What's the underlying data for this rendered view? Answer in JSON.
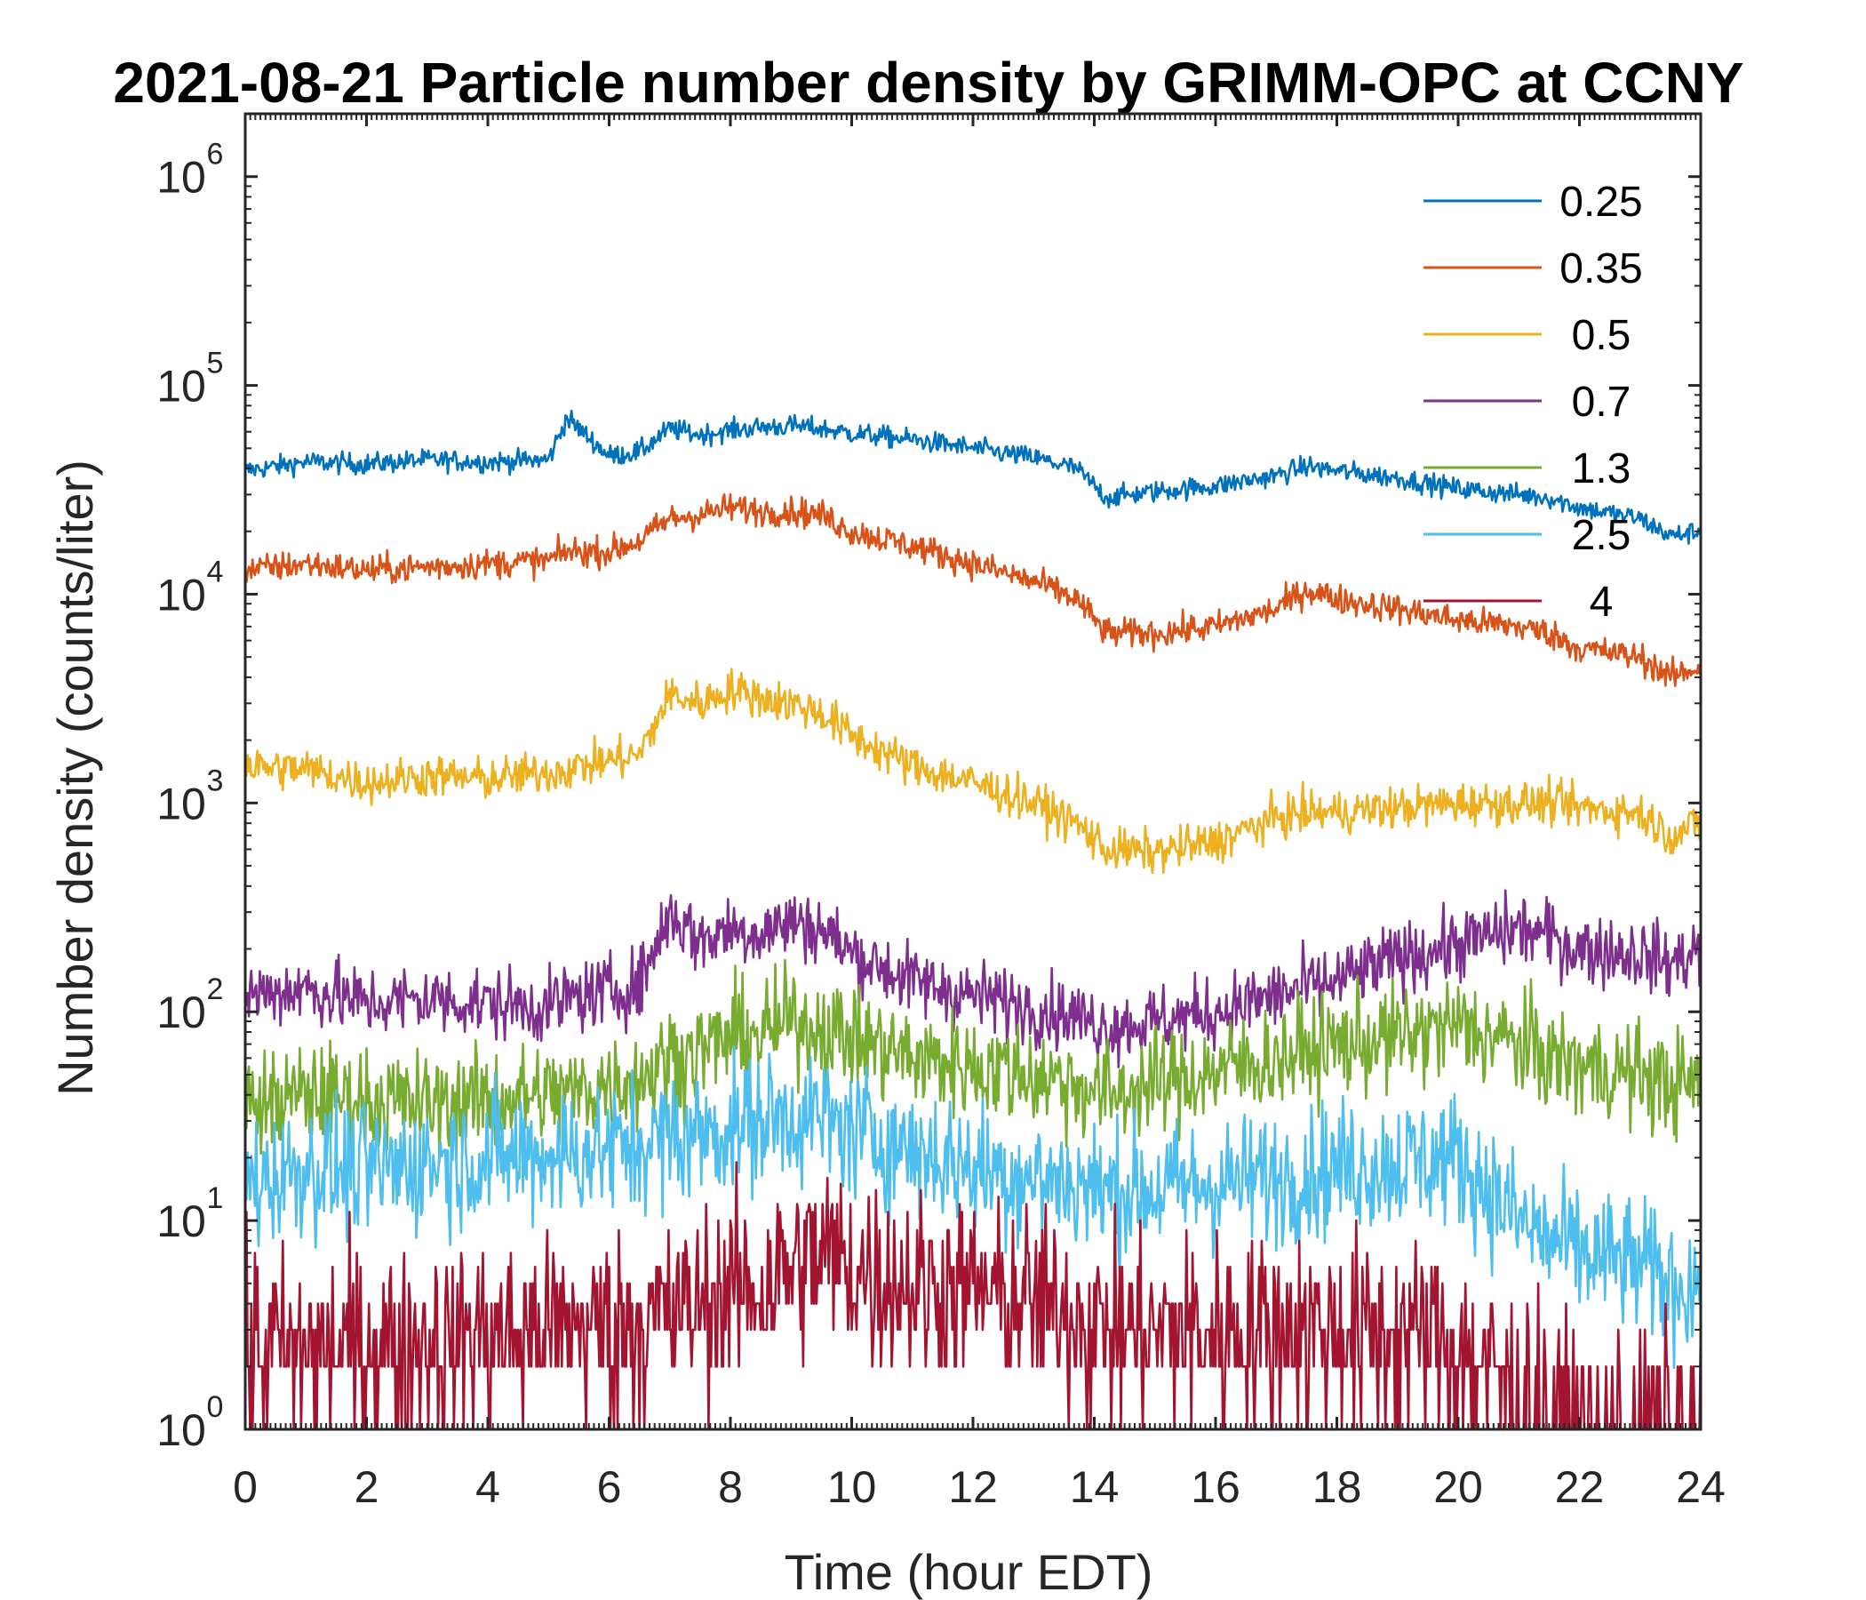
{
  "chart_data": {
    "type": "line",
    "title": "2021-08-21 Particle number density by GRIMM-OPC at CCNY",
    "xlabel": "Time (hour EDT)",
    "ylabel": "Number density (counts/liter)",
    "xlim": [
      0,
      24
    ],
    "ylim": [
      1,
      2000000
    ],
    "yscale": "log",
    "xticks": [
      "0",
      "2",
      "4",
      "6",
      "8",
      "10",
      "12",
      "14",
      "16",
      "18",
      "20",
      "22",
      "24"
    ],
    "yticks": [
      {
        "base": "10",
        "exp": "0",
        "value": 1
      },
      {
        "base": "10",
        "exp": "1",
        "value": 10
      },
      {
        "base": "10",
        "exp": "2",
        "value": 100
      },
      {
        "base": "10",
        "exp": "3",
        "value": 1000
      },
      {
        "base": "10",
        "exp": "4",
        "value": 10000
      },
      {
        "base": "10",
        "exp": "5",
        "value": 100000
      },
      {
        "base": "10",
        "exp": "6",
        "value": 1000000
      }
    ],
    "legend_position": "top-right",
    "x": [
      0,
      1,
      2,
      3,
      4,
      5,
      5.3,
      6,
      6.5,
      7,
      7.5,
      8,
      8.5,
      9,
      9.5,
      10,
      11,
      12,
      13,
      13.7,
      14.2,
      15,
      16,
      17,
      17.5,
      18,
      19,
      20,
      21,
      21.5,
      22,
      23,
      23.5,
      24
    ],
    "series": [
      {
        "name": "0.25",
        "color": "#0072BD",
        "noise": 0.05,
        "values": [
          39000,
          43000,
          42000,
          44000,
          43000,
          44000,
          70000,
          46000,
          48000,
          62000,
          58000,
          61000,
          63000,
          64000,
          62000,
          59000,
          55000,
          50000,
          45000,
          40000,
          29000,
          31000,
          33000,
          37000,
          41000,
          39000,
          36000,
          32000,
          30000,
          29000,
          26000,
          23000,
          19000,
          20000
        ]
      },
      {
        "name": "0.35",
        "color": "#D95319",
        "noise": 0.07,
        "values": [
          13000,
          14000,
          13000,
          13500,
          14000,
          14500,
          16000,
          16000,
          18000,
          23000,
          24000,
          26000,
          25000,
          25000,
          24000,
          20000,
          17000,
          14000,
          11500,
          9500,
          6500,
          6500,
          7000,
          8500,
          10500,
          9500,
          8500,
          7500,
          7000,
          6500,
          5500,
          5000,
          4000,
          4500
        ]
      },
      {
        "name": "0.5",
        "color": "#EDB120",
        "noise": 0.1,
        "values": [
          1500,
          1450,
          1250,
          1350,
          1300,
          1400,
          1450,
          1600,
          1700,
          3300,
          3000,
          3500,
          3200,
          3000,
          2700,
          2100,
          1500,
          1250,
          1000,
          800,
          600,
          580,
          650,
          850,
          900,
          900,
          950,
          1000,
          1000,
          1000,
          950,
          900,
          700,
          800
        ]
      },
      {
        "name": "0.7",
        "color": "#7E2F8E",
        "noise": 0.17,
        "values": [
          120,
          130,
          110,
          115,
          110,
          105,
          115,
          125,
          135,
          300,
          220,
          250,
          240,
          270,
          250,
          190,
          140,
          120,
          105,
          95,
          85,
          90,
          100,
          120,
          130,
          140,
          180,
          210,
          250,
          230,
          200,
          190,
          170,
          200
        ]
      },
      {
        "name": "1.3",
        "color": "#77AC30",
        "noise": 0.25,
        "values": [
          35,
          40,
          38,
          36,
          38,
          40,
          40,
          45,
          48,
          60,
          65,
          75,
          78,
          90,
          85,
          75,
          60,
          55,
          50,
          45,
          40,
          45,
          52,
          60,
          65,
          70,
          75,
          85,
          70,
          60,
          55,
          50,
          45,
          45
        ]
      },
      {
        "name": "2.5",
        "color": "#4DBEEE",
        "noise": 0.32,
        "values": [
          15,
          18,
          17,
          19,
          20,
          21,
          21,
          22,
          23,
          25,
          26,
          28,
          30,
          32,
          30,
          27,
          22,
          18,
          16,
          15,
          14,
          14,
          15,
          16,
          17,
          18,
          19,
          20,
          10,
          8,
          7,
          6,
          5,
          5
        ]
      },
      {
        "name": "4",
        "color": "#A2142F",
        "noise": 0.45,
        "values": [
          2.5,
          2.5,
          2.5,
          2.6,
          2.8,
          3,
          3,
          3.2,
          3.3,
          3.5,
          4,
          4.5,
          5,
          6,
          7,
          6,
          5,
          4.5,
          4,
          3.5,
          3,
          3,
          3,
          3,
          3,
          3,
          3,
          2.5,
          1.5,
          1.2,
          1,
          1,
          1,
          1
        ]
      }
    ]
  }
}
